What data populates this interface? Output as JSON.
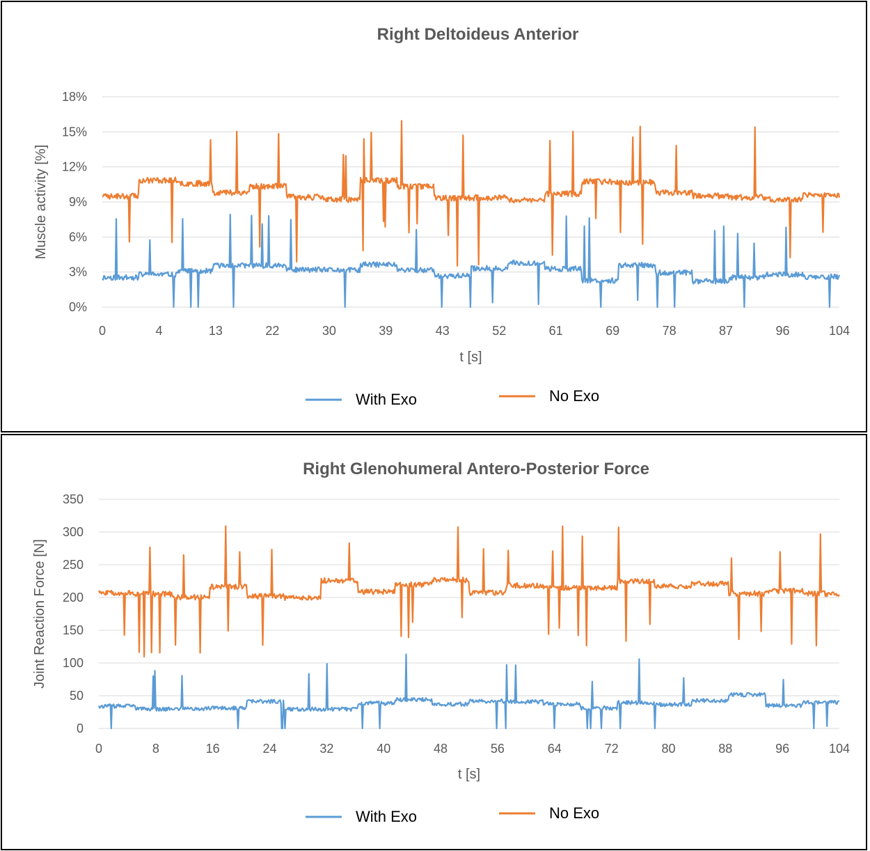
{
  "chart_data": [
    {
      "type": "line",
      "title": "Right Deltoideus Anterior",
      "xlabel": "t [s]",
      "ylabel": "Muscle activity [%]",
      "x_tick_labels": [
        "0",
        "4",
        "13",
        "22",
        "30",
        "39",
        "43",
        "52",
        "61",
        "69",
        "78",
        "87",
        "96",
        "104"
      ],
      "y_tick_labels": [
        "0%",
        "3%",
        "6%",
        "9%",
        "12%",
        "15%",
        "18%"
      ],
      "ylim": [
        0,
        18
      ],
      "grid": true,
      "legend_position": "bottom",
      "series": [
        {
          "name": "With Exo",
          "color": "#5b9bd5",
          "baseline": 3.0,
          "noise": 0.45,
          "seed": 11
        },
        {
          "name": "No Exo",
          "color": "#ed7d31",
          "baseline": 10.0,
          "noise": 0.5,
          "seed": 23
        }
      ]
    },
    {
      "type": "line",
      "title": "Right Glenohumeral Antero-Posterior Force",
      "xlabel": "t [s]",
      "ylabel": "Joint Reaction Force [N]",
      "x_tick_labels": [
        "0",
        "8",
        "16",
        "24",
        "32",
        "40",
        "48",
        "56",
        "64",
        "72",
        "80",
        "88",
        "96",
        "104"
      ],
      "y_tick_labels": [
        "0",
        "50",
        "100",
        "150",
        "200",
        "250",
        "300",
        "350"
      ],
      "ylim": [
        0,
        350
      ],
      "grid": true,
      "legend_position": "bottom",
      "series": [
        {
          "name": "With Exo",
          "color": "#5b9bd5",
          "baseline": 40,
          "noise": 6,
          "seed": 37
        },
        {
          "name": "No Exo",
          "color": "#ed7d31",
          "baseline": 215,
          "noise": 8,
          "seed": 51
        }
      ]
    }
  ]
}
